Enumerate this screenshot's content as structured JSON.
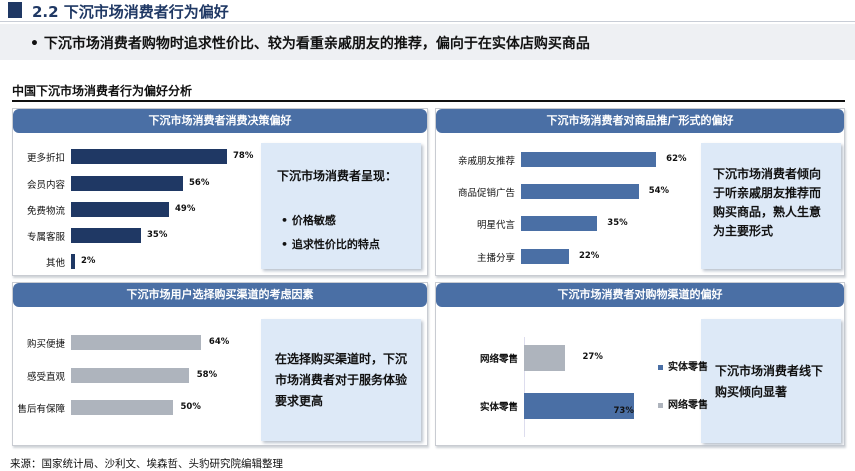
{
  "header": {
    "title": "2.2  下沉市场消费者行为偏好",
    "bullet": "•  下沉市场消费者购物时追求性价比、较为看重亲戚朋友的推荐，偏向于在实体店购买商品"
  },
  "section_title": "中国下沉市场消费者行为偏好分析",
  "colors": {
    "navy": "#1f3864",
    "panel_header": "#4a6fa5",
    "blue_bar": "#4a6fa5",
    "gray_bar": "#aeb4bd",
    "note_bg": "#dde9f7"
  },
  "chart_data": [
    {
      "type": "bar",
      "orientation": "horizontal",
      "title": "下沉市场消费者消费决策偏好",
      "categories": [
        "更多折扣",
        "会员内容",
        "免费物流",
        "专属客服",
        "其他"
      ],
      "values": [
        78,
        56,
        49,
        35,
        2
      ],
      "labels": [
        "78%",
        "56%",
        "49%",
        "35%",
        "2%"
      ],
      "unit": "%"
    },
    {
      "type": "bar",
      "orientation": "horizontal",
      "title": "下沉市场消费者对商品推广形式的偏好",
      "categories": [
        "亲戚朋友推荐",
        "商品促销广告",
        "明星代言",
        "主播分享"
      ],
      "values": [
        62,
        54,
        35,
        22
      ],
      "labels": [
        "62%",
        "54%",
        "35%",
        "22%"
      ],
      "unit": "%"
    },
    {
      "type": "bar",
      "orientation": "horizontal",
      "title": "下沉市场用户选择购买渠道的考虑因素",
      "categories": [
        "购买便捷",
        "感受直观",
        "售后有保障"
      ],
      "values": [
        64,
        58,
        50
      ],
      "labels": [
        "64%",
        "58%",
        "50%"
      ],
      "unit": "%"
    },
    {
      "type": "bar",
      "orientation": "horizontal",
      "title": "下沉市场消费者对购物渠道的偏好",
      "categories": [
        "网络零售",
        "实体零售"
      ],
      "values": [
        27,
        73
      ],
      "labels": [
        "27%",
        "73%"
      ],
      "unit": "%",
      "legend": [
        "实体零售",
        "网络零售"
      ],
      "legend_placement": "right"
    }
  ],
  "notes": {
    "tl": {
      "heading": "下沉市场消费者呈现：",
      "items": [
        "•  价格敏感",
        "•  追求性价比的特点"
      ]
    },
    "tr": "下沉市场消费者倾向于听亲戚朋友推荐而购买商品，熟人生意为主要形式",
    "bl": "在选择购买渠道时，下沉市场消费者对于服务体验要求更高",
    "br": "下沉市场消费者线下购买倾向显著"
  },
  "source": "来源：国家统计局、沙利文、埃森哲、头豹研究院编辑整理"
}
